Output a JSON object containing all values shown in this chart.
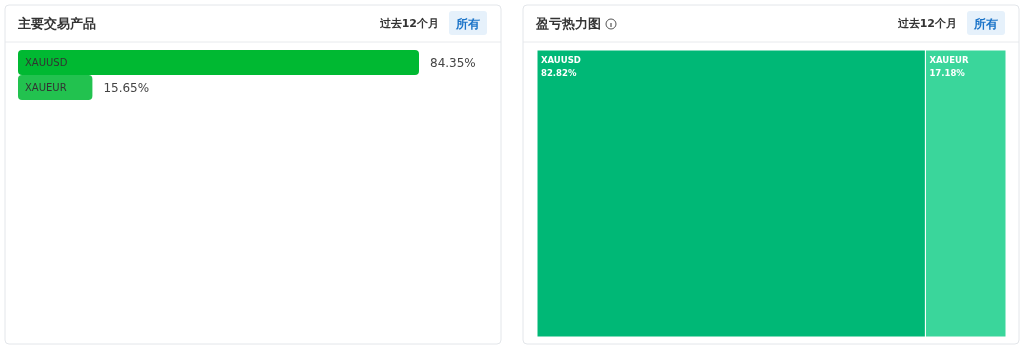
{
  "chart_data": [
    {
      "type": "bar",
      "orientation": "horizontal",
      "title": "主要交易产品",
      "categories": [
        "XAUUSD",
        "XAUEUR"
      ],
      "values": [
        84.35,
        15.65
      ],
      "colors": [
        "#00b932",
        "#22c24f"
      ],
      "value_labels": [
        "84.35%",
        "15.65%"
      ],
      "annotations": [
        "过去12个月",
        "所有"
      ]
    },
    {
      "type": "other",
      "title": "盈亏热力图",
      "categories": [
        "XAUUSD",
        "XAUEUR"
      ],
      "values": [
        82.82,
        17.18
      ],
      "colors": [
        "#00b876",
        "#3ad69b"
      ],
      "value_labels": [
        "82.82%",
        "17.18%"
      ],
      "annotations": [
        "过去12个月",
        "所有"
      ]
    }
  ]
}
